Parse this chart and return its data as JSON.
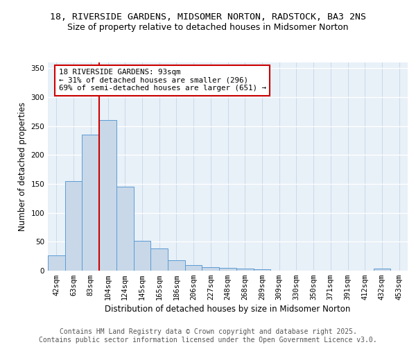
{
  "title1": "18, RIVERSIDE GARDENS, MIDSOMER NORTON, RADSTOCK, BA3 2NS",
  "title2": "Size of property relative to detached houses in Midsomer Norton",
  "xlabel": "Distribution of detached houses by size in Midsomer Norton",
  "ylabel": "Number of detached properties",
  "bin_labels": [
    "42sqm",
    "63sqm",
    "83sqm",
    "104sqm",
    "124sqm",
    "145sqm",
    "165sqm",
    "186sqm",
    "206sqm",
    "227sqm",
    "248sqm",
    "268sqm",
    "289sqm",
    "309sqm",
    "330sqm",
    "350sqm",
    "371sqm",
    "391sqm",
    "412sqm",
    "432sqm",
    "453sqm"
  ],
  "bar_values": [
    27,
    155,
    235,
    260,
    145,
    52,
    38,
    18,
    10,
    6,
    5,
    4,
    3,
    0,
    0,
    0,
    0,
    0,
    0,
    4,
    0
  ],
  "bar_color": "#c8d8e8",
  "bar_edge_color": "#5b9bd5",
  "vline_color": "#cc0000",
  "annotation_text": "18 RIVERSIDE GARDENS: 93sqm\n← 31% of detached houses are smaller (296)\n69% of semi-detached houses are larger (651) →",
  "annotation_box_color": "#ffffff",
  "annotation_edge_color": "#cc0000",
  "ylim": [
    0,
    360
  ],
  "yticks": [
    0,
    50,
    100,
    150,
    200,
    250,
    300,
    350
  ],
  "background_color": "#e8f0f8",
  "footer_text": "Contains HM Land Registry data © Crown copyright and database right 2025.\nContains public sector information licensed under the Open Government Licence v3.0.",
  "title1_fontsize": 9.5,
  "title2_fontsize": 9,
  "label_fontsize": 8.5,
  "tick_fontsize": 7.5,
  "footer_fontsize": 7
}
